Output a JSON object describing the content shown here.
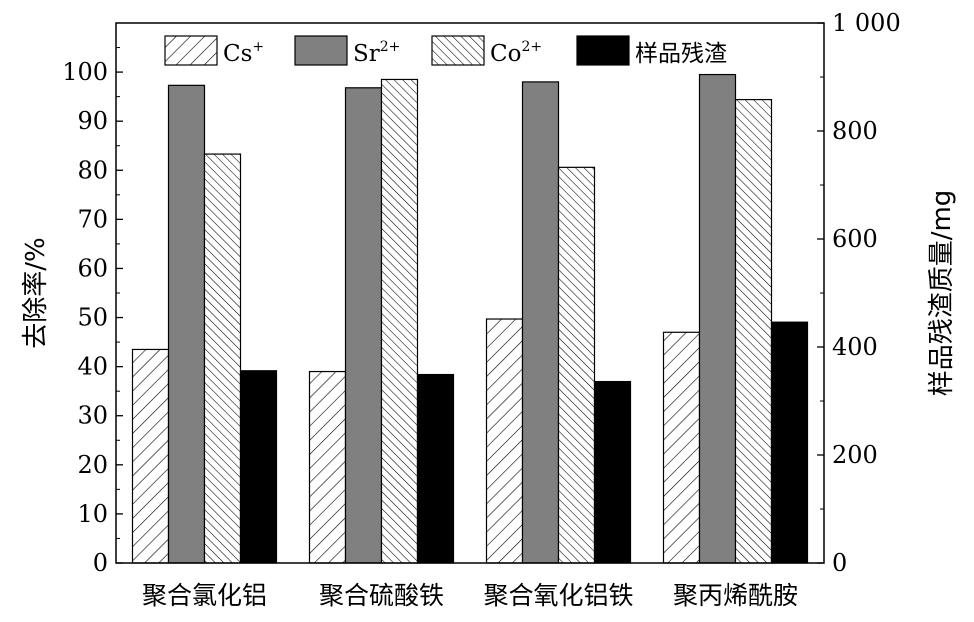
{
  "chart_data": {
    "type": "bar",
    "categories": [
      "聚合氯化铝",
      "聚合硫酸铁",
      "聚合氧化铝铁",
      "聚丙烯酰胺"
    ],
    "series": [
      {
        "name": "Cs⁺",
        "label_base": "Cs",
        "label_sup": "+",
        "axis": "left",
        "pattern": "hatch-fwd",
        "values": [
          43.5,
          39,
          49.7,
          47
        ]
      },
      {
        "name": "Sr²⁺",
        "label_base": "Sr",
        "label_sup": "2+",
        "axis": "left",
        "pattern": "gray",
        "values": [
          97.3,
          96.8,
          98,
          99.5
        ]
      },
      {
        "name": "Co²⁺",
        "label_base": "Co",
        "label_sup": "2+",
        "axis": "left",
        "pattern": "hatch-back",
        "values": [
          83.3,
          98.5,
          80.6,
          94.4
        ]
      },
      {
        "name": "样品残渣",
        "label_base": "样品残渣",
        "label_sup": "",
        "axis": "right",
        "pattern": "black",
        "values": [
          356,
          349,
          336,
          446
        ]
      }
    ],
    "ylabel": "去除率/%",
    "y2label": "样品残渣质量/mg",
    "ylim": [
      0,
      110
    ],
    "y2lim": [
      0,
      1000
    ],
    "yticks": [
      0,
      10,
      20,
      30,
      40,
      50,
      60,
      70,
      80,
      90,
      100
    ],
    "y2ticks": [
      0,
      200,
      400,
      600,
      800,
      1000
    ],
    "y2tick_labels": [
      "0",
      "200",
      "400",
      "600",
      "800",
      "1 000"
    ],
    "legend": "top",
    "grid": false,
    "colors": {
      "gray": "#808080",
      "black": "#000000",
      "frame": "#000000"
    }
  }
}
